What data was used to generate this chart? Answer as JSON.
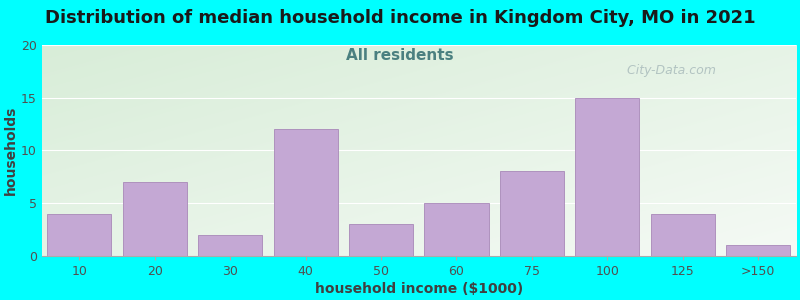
{
  "title": "Distribution of median household income in Kingdom City, MO in 2021",
  "subtitle": "All residents",
  "xlabel": "household income ($1000)",
  "ylabel": "households",
  "background_color": "#00FFFF",
  "bar_color": "#C4A8D4",
  "bar_edge_color": "#A888B8",
  "categories": [
    "10",
    "20",
    "30",
    "40",
    "50",
    "60",
    "75",
    "100",
    "125",
    ">150"
  ],
  "values": [
    4,
    7,
    2,
    12,
    3,
    5,
    8,
    15,
    4,
    1
  ],
  "ylim": [
    0,
    20
  ],
  "yticks": [
    0,
    5,
    10,
    15,
    20
  ],
  "title_fontsize": 13,
  "subtitle_fontsize": 11,
  "subtitle_color": "#4A8080",
  "axis_label_fontsize": 10,
  "tick_fontsize": 9,
  "watermark_text": "  City-Data.com",
  "watermark_color": "#AABCBC",
  "plot_bg_top_left": "#D8EDD8",
  "plot_bg_bottom_right": "#F5FAF5",
  "grid_color": "#FFFFFF",
  "spine_color": "#AAAAAA"
}
